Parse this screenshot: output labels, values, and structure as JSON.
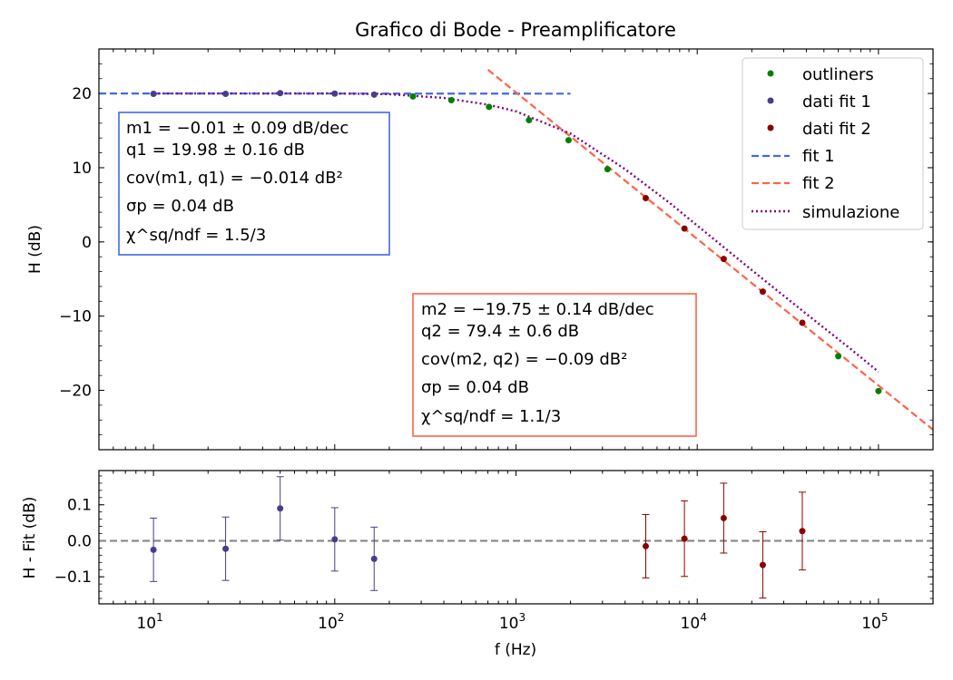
{
  "chart_data": [
    {
      "type": "scatter",
      "title": "Grafico di Bode - Preamplificatore",
      "xlabel": "",
      "ylabel": "H (dB)",
      "xscale": "log",
      "xlim": [
        5,
        200000
      ],
      "ylim": [
        -28,
        26
      ],
      "yticks": [
        20,
        10,
        0,
        -10,
        -20
      ],
      "ytick_labels": [
        "20",
        "10",
        "0",
        "−10",
        "−20"
      ],
      "legend_position": "top-right",
      "series": [
        {
          "name": "outliners",
          "style": "points",
          "color": "#008000",
          "x": [
            270,
            440,
            710,
            1180,
            1950,
            3200,
            60000,
            100000
          ],
          "y": [
            19.6,
            19.1,
            18.2,
            16.4,
            13.7,
            9.8,
            -15.4,
            -20.1
          ]
        },
        {
          "name": "dati fit 1",
          "style": "points",
          "color": "#483d8b",
          "x": [
            10,
            25,
            50,
            100,
            165
          ],
          "y": [
            19.95,
            19.95,
            20.05,
            19.98,
            19.85
          ]
        },
        {
          "name": "dati fit 2",
          "style": "points",
          "color": "#8b0000",
          "x": [
            5200,
            8500,
            14000,
            23000,
            38000
          ],
          "y": [
            5.9,
            1.8,
            -2.3,
            -6.7,
            -10.9
          ]
        },
        {
          "name": "fit 1",
          "style": "dashed",
          "color": "#4169e1",
          "x": [
            5,
            2000
          ],
          "y": [
            20.0,
            19.98
          ]
        },
        {
          "name": "fit 2",
          "style": "dashed",
          "color": "#ff6347",
          "x": [
            700,
            200000
          ],
          "y": [
            23.2,
            -25.3
          ]
        },
        {
          "name": "simulazione",
          "style": "dotted",
          "color": "#800080",
          "x": [
            10,
            100,
            200,
            400,
            700,
            1000,
            2000,
            4000,
            7000,
            10000,
            20000,
            40000,
            70000,
            100000
          ],
          "y": [
            20.0,
            20.0,
            19.9,
            19.4,
            18.5,
            17.6,
            14.6,
            9.8,
            5.3,
            2.2,
            -3.8,
            -9.7,
            -14.4,
            -17.5
          ]
        }
      ],
      "annotations": [
        {
          "color": "#4169e1",
          "lines": [
            "m1 = −0.01 ± 0.09 dB/dec",
            "q1 = 19.98 ± 0.16 dB",
            "cov(m1, q1) = −0.014 dB²",
            "σp = 0.04 dB",
            "χ^sq/ndf = 1.5/3"
          ]
        },
        {
          "color": "#ff6347",
          "lines": [
            "m2 = −19.75 ± 0.14 dB/dec",
            "q2 = 79.4 ± 0.6 dB",
            "cov(m2, q2) = −0.09 dB²",
            "σp = 0.04 dB",
            "χ^sq/ndf = 1.1/3"
          ]
        }
      ]
    },
    {
      "type": "scatter",
      "title": "",
      "xlabel": "f (Hz)",
      "ylabel": "H - Fit (dB)",
      "xscale": "log",
      "xlim": [
        5,
        200000
      ],
      "ylim": [
        -0.175,
        0.195
      ],
      "yticks": [
        0.1,
        0.0,
        -0.1
      ],
      "ytick_labels": [
        "0.1",
        "0.0",
        "−0.1"
      ],
      "xticks": [
        10,
        100,
        1000,
        10000,
        100000
      ],
      "xtick_labels": [
        {
          "base": "10",
          "exp": "1"
        },
        {
          "base": "10",
          "exp": "2"
        },
        {
          "base": "10",
          "exp": "3"
        },
        {
          "base": "10",
          "exp": "4"
        },
        {
          "base": "10",
          "exp": "5"
        }
      ],
      "reference_line": {
        "y": 0.0,
        "color": "#808080",
        "style": "dashed"
      },
      "series": [
        {
          "name": "",
          "color": "#483d8b",
          "x": [
            10,
            25,
            50,
            100,
            165
          ],
          "y": [
            -0.025,
            -0.022,
            0.09,
            0.004,
            -0.05
          ],
          "err": [
            0.088,
            0.088,
            0.088,
            0.088,
            0.088
          ]
        },
        {
          "name": "",
          "color": "#8b0000",
          "x": [
            5200,
            8500,
            14000,
            23000,
            38000
          ],
          "y": [
            -0.015,
            0.006,
            0.063,
            -0.067,
            0.027
          ],
          "err": [
            0.088,
            0.105,
            0.097,
            0.092,
            0.108
          ]
        }
      ]
    }
  ]
}
